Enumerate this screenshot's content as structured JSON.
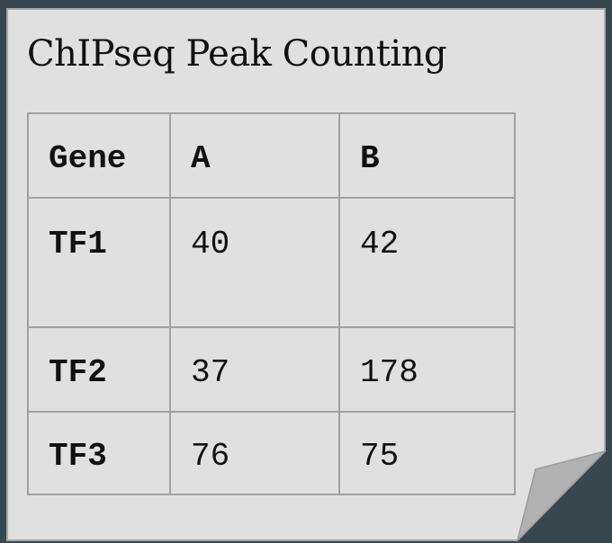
{
  "title": "ChIPseq Peak Counting",
  "table": {
    "headers": [
      "Gene",
      "A",
      "B"
    ],
    "rows": [
      {
        "gene": "TF1",
        "a": "40",
        "b": "42"
      },
      {
        "gene": "TF2",
        "a": "37",
        "b": "178"
      },
      {
        "gene": "TF3",
        "a": "76",
        "b": "75"
      }
    ]
  },
  "colors": {
    "background": "#36474f",
    "sheet": "#e0e0e0",
    "fold": "#b1b1b1",
    "grid": "#a0a0a0"
  }
}
